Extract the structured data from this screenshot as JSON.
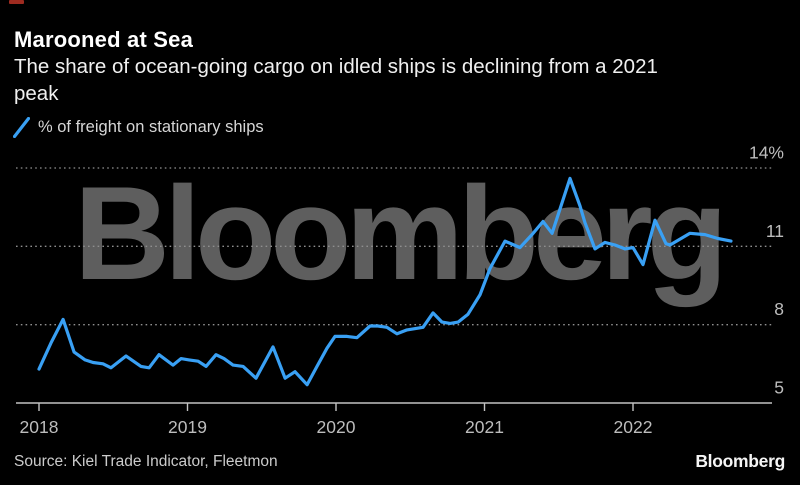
{
  "header": {
    "title": "Marooned at Sea",
    "subtitle": "The share of ocean-going cargo on idled ships is declining from a 2021\npeak"
  },
  "legend": {
    "series_label": "% of freight on stationary ships"
  },
  "watermark": "Bloomberg",
  "footer": {
    "source": "Source: Kiel Trade Indicator, Fleetmon",
    "brand": "Bloomberg"
  },
  "colors": {
    "background": "#000000",
    "line": "#39a0f4",
    "grid": "#8f8f8f",
    "axis": "#c2c2c2",
    "axis_label": "#bdbdbd",
    "watermark": "#5e5e5e",
    "accent_red": "#9e2b20"
  },
  "chart_data": {
    "type": "line",
    "title": "Marooned at Sea",
    "xlabel": "",
    "ylabel": "% of freight on stationary ships",
    "grid": "dotted-horizontal",
    "legend_position": "top-left",
    "xlim": [
      2017.845,
      2022.936
    ],
    "ylim": [
      5,
      14
    ],
    "x_ticks": [
      {
        "value": 2018,
        "label": "2018"
      },
      {
        "value": 2019,
        "label": "2019"
      },
      {
        "value": 2020,
        "label": "2020"
      },
      {
        "value": 2021,
        "label": "2021"
      },
      {
        "value": 2022,
        "label": "2022"
      }
    ],
    "y_ticks": [
      {
        "value": 14,
        "label": "14%"
      },
      {
        "value": 11,
        "label": "11"
      },
      {
        "value": 8,
        "label": "8"
      },
      {
        "value": 5,
        "label": "5"
      }
    ],
    "series": [
      {
        "name": "% of freight on stationary ships",
        "color": "#39a0f4",
        "points": [
          [
            2018.0,
            6.3
          ],
          [
            2018.081,
            7.3
          ],
          [
            2018.162,
            8.2
          ],
          [
            2018.236,
            6.95
          ],
          [
            2018.31,
            6.65
          ],
          [
            2018.364,
            6.55
          ],
          [
            2018.431,
            6.5
          ],
          [
            2018.485,
            6.35
          ],
          [
            2018.586,
            6.8
          ],
          [
            2018.687,
            6.4
          ],
          [
            2018.741,
            6.35
          ],
          [
            2018.808,
            6.85
          ],
          [
            2018.902,
            6.45
          ],
          [
            2018.956,
            6.7
          ],
          [
            2019.01,
            6.65
          ],
          [
            2019.071,
            6.6
          ],
          [
            2019.125,
            6.4
          ],
          [
            2019.192,
            6.85
          ],
          [
            2019.246,
            6.7
          ],
          [
            2019.306,
            6.45
          ],
          [
            2019.374,
            6.4
          ],
          [
            2019.461,
            5.95
          ],
          [
            2019.576,
            7.15
          ],
          [
            2019.657,
            5.95
          ],
          [
            2019.724,
            6.2
          ],
          [
            2019.805,
            5.7
          ],
          [
            2019.872,
            6.4
          ],
          [
            2019.939,
            7.1
          ],
          [
            2019.993,
            7.55
          ],
          [
            2020.074,
            7.55
          ],
          [
            2020.141,
            7.5
          ],
          [
            2020.229,
            7.95
          ],
          [
            2020.283,
            7.95
          ],
          [
            2020.343,
            7.9
          ],
          [
            2020.411,
            7.65
          ],
          [
            2020.478,
            7.8
          ],
          [
            2020.586,
            7.9
          ],
          [
            2020.653,
            8.45
          ],
          [
            2020.714,
            8.1
          ],
          [
            2020.768,
            8.05
          ],
          [
            2020.822,
            8.1
          ],
          [
            2020.889,
            8.4
          ],
          [
            2020.97,
            9.15
          ],
          [
            2021.037,
            10.15
          ],
          [
            2021.138,
            11.2
          ],
          [
            2021.239,
            10.95
          ],
          [
            2021.32,
            11.45
          ],
          [
            2021.394,
            11.95
          ],
          [
            2021.455,
            11.5
          ],
          [
            2021.576,
            13.6
          ],
          [
            2021.643,
            12.55
          ],
          [
            2021.677,
            11.9
          ],
          [
            2021.744,
            10.9
          ],
          [
            2021.811,
            11.15
          ],
          [
            2021.879,
            11.05
          ],
          [
            2021.946,
            10.9
          ],
          [
            2022.0,
            10.95
          ],
          [
            2022.067,
            10.3
          ],
          [
            2022.148,
            12.0
          ],
          [
            2022.222,
            11.1
          ],
          [
            2022.249,
            11.05
          ],
          [
            2022.384,
            11.5
          ],
          [
            2022.485,
            11.45
          ],
          [
            2022.572,
            11.3
          ],
          [
            2022.66,
            11.2
          ]
        ]
      }
    ]
  }
}
